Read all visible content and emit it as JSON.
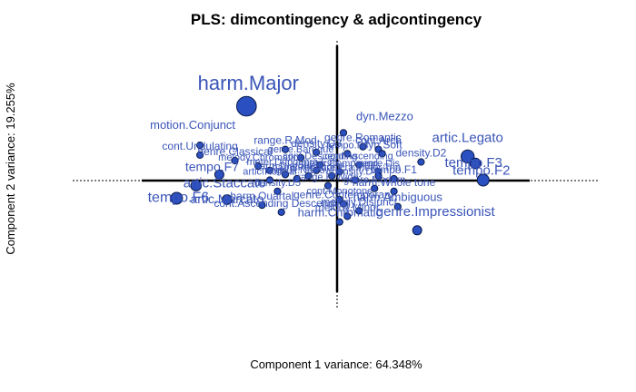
{
  "chart_data": {
    "type": "scatter",
    "title": "PLS: dimcontingency & adjcontingency",
    "xlabel": "Component 1 variance: 64.348%",
    "ylabel": "Component 2 variance: 19.255%",
    "xlim": [
      -1.0,
      1.0
    ],
    "ylim": [
      -1.0,
      1.0
    ],
    "grid": false,
    "point_color": "#2a4fc0",
    "label_color": "#3a55b8",
    "points": [
      {
        "label": "harm.Major",
        "x": -0.46,
        "y": 0.53,
        "weight": 3.0
      },
      {
        "label": "dyn.Mezzo",
        "x": 0.04,
        "y": 0.34,
        "weight": 1
      },
      {
        "label": "genre.Romantic",
        "x": 0.14,
        "y": 0.24,
        "weight": 1
      },
      {
        "label": "cont.Arch",
        "x": 0.22,
        "y": 0.22,
        "weight": 1
      },
      {
        "label": "motion.Conjunct",
        "x": -0.7,
        "y": 0.25,
        "weight": 1
      },
      {
        "label": "range.R.Mod",
        "x": -0.26,
        "y": 0.22,
        "weight": 1
      },
      {
        "label": "density.D3",
        "x": -0.1,
        "y": 0.2,
        "weight": 1
      },
      {
        "label": "tempo.F4",
        "x": 0.06,
        "y": 0.19,
        "weight": 1
      },
      {
        "label": "dyn.Soft",
        "x": 0.24,
        "y": 0.19,
        "weight": 1
      },
      {
        "label": "artic.Legato",
        "x": 0.68,
        "y": 0.17,
        "weight": 2.0
      },
      {
        "label": "tempo.F3",
        "x": 0.72,
        "y": 0.12,
        "weight": 1.6
      },
      {
        "label": "cont.Undulating",
        "x": -0.7,
        "y": 0.18,
        "weight": 1
      },
      {
        "label": "genre.Classical",
        "x": -0.52,
        "y": 0.14,
        "weight": 1
      },
      {
        "label": "genre.Baroque",
        "x": -0.18,
        "y": 0.16,
        "weight": 1
      },
      {
        "label": "density.D2",
        "x": 0.44,
        "y": 0.13,
        "weight": 1
      },
      {
        "label": "melody.Chromatic",
        "x": -0.4,
        "y": 0.1,
        "weight": 1
      },
      {
        "label": "cont.Descending",
        "x": -0.08,
        "y": 0.11,
        "weight": 1
      },
      {
        "label": "cont.Ascending",
        "x": 0.12,
        "y": 0.11,
        "weight": 1
      },
      {
        "label": "meter.Dup",
        "x": -0.34,
        "y": 0.07,
        "weight": 1
      },
      {
        "label": "genre.Folk",
        "x": -0.1,
        "y": 0.07,
        "weight": 1
      },
      {
        "label": "meter.Compound",
        "x": 0.02,
        "y": 0.06,
        "weight": 1
      },
      {
        "label": "genre.Dis",
        "x": 0.22,
        "y": 0.06,
        "weight": 1
      },
      {
        "label": "harm.Diatonic",
        "x": -0.26,
        "y": 0.04,
        "weight": 1
      },
      {
        "label": "harm.Pentatonic",
        "x": -0.14,
        "y": 0.03,
        "weight": 1
      },
      {
        "label": "genre.Era",
        "x": -0.02,
        "y": 0.03,
        "weight": 1
      },
      {
        "label": "meter.Trip",
        "x": 0.22,
        "y": 0.03,
        "weight": 1
      },
      {
        "label": "tempo.F7",
        "x": -0.6,
        "y": 0.04,
        "weight": 1.4
      },
      {
        "label": "artic.Normal",
        "x": -0.34,
        "y": 0.0,
        "weight": 1
      },
      {
        "label": "range.R.Narrow",
        "x": -0.2,
        "y": 0.01,
        "weight": 1
      },
      {
        "label": "tempo.F1",
        "x": 0.3,
        "y": 0.01,
        "weight": 1
      },
      {
        "label": "tempo.F2",
        "x": 0.76,
        "y": 0.0,
        "weight": 1.8
      },
      {
        "label": "density.D4",
        "x": 0.1,
        "y": 0.0,
        "weight": 1
      },
      {
        "label": "range.R.Wide",
        "x": -0.04,
        "y": -0.04,
        "weight": 1
      },
      {
        "label": "genre.Modern",
        "x": 0.2,
        "y": -0.06,
        "weight": 1
      },
      {
        "label": "harm.Whole tone",
        "x": 0.3,
        "y": -0.08,
        "weight": 1
      },
      {
        "label": "artic.Staccato",
        "x": -0.72,
        "y": -0.04,
        "weight": 1.6
      },
      {
        "label": "tempo.F6",
        "x": -0.82,
        "y": -0.13,
        "weight": 1.8
      },
      {
        "label": "artic.Marcato",
        "x": -0.56,
        "y": -0.14,
        "weight": 1.5
      },
      {
        "label": "density.D5",
        "x": -0.3,
        "y": -0.08,
        "weight": 1
      },
      {
        "label": "cont.Monotone",
        "x": 0.02,
        "y": -0.14,
        "weight": 1
      },
      {
        "label": "harm.Quartal",
        "x": -0.38,
        "y": -0.18,
        "weight": 1
      },
      {
        "label": "genre.Contemporary",
        "x": 0.04,
        "y": -0.17,
        "weight": 1
      },
      {
        "label": "harm.Ambiguous",
        "x": 0.32,
        "y": -0.19,
        "weight": 1
      },
      {
        "label": "cont.Ascending Descending",
        "x": -0.28,
        "y": -0.23,
        "weight": 1
      },
      {
        "label": "melody.Disjunct",
        "x": 0.12,
        "y": -0.22,
        "weight": 1
      },
      {
        "label": "melody.Minor",
        "x": 0.06,
        "y": -0.26,
        "weight": 1
      },
      {
        "label": "harm.Chromatic",
        "x": 0.02,
        "y": -0.3,
        "weight": 1
      },
      {
        "label": "genre.Impressionist",
        "x": 0.42,
        "y": -0.36,
        "weight": 1.4
      }
    ],
    "visible_labels": [
      {
        "text": "harm.Major",
        "size": 22
      },
      {
        "text": "dyn.Mezzo",
        "size": 13
      },
      {
        "text": "genre.Romantic",
        "size": 12
      },
      {
        "text": "cont.Arch",
        "size": 12
      },
      {
        "text": "motion.Conjunct",
        "size": 13
      },
      {
        "text": "range.R.Mod",
        "size": 12
      },
      {
        "text": "density.D3",
        "size": 12
      },
      {
        "text": "tempo.F4",
        "size": 11
      },
      {
        "text": "dyn.Soft",
        "size": 12
      },
      {
        "text": "artic.Legato",
        "size": 15
      },
      {
        "text": "tempo.F3",
        "size": 15
      },
      {
        "text": "cont.Undulating",
        "size": 12
      },
      {
        "text": "genre.Classical",
        "size": 12
      },
      {
        "text": "genre.Baroque",
        "size": 11
      },
      {
        "text": "density.D2",
        "size": 12
      },
      {
        "text": "melody.Chromatic",
        "size": 11
      },
      {
        "text": "cont.Descending",
        "size": 11
      },
      {
        "text": "cont.Ascending",
        "size": 11
      },
      {
        "text": "meter.Dup",
        "size": 11
      },
      {
        "text": "genre.Folk",
        "size": 11
      },
      {
        "text": "meter.Compound",
        "size": 11
      },
      {
        "text": "genre.Dis",
        "size": 11
      },
      {
        "text": "harm.Diatonic",
        "size": 11
      },
      {
        "text": "harm.Pentatonic",
        "size": 11
      },
      {
        "text": "genre.Era",
        "size": 11
      },
      {
        "text": "meter.Trip",
        "size": 11
      },
      {
        "text": "tempo.F7",
        "size": 14
      },
      {
        "text": "artic.Normal",
        "size": 11
      },
      {
        "text": "range.R.Narrow",
        "size": 11
      },
      {
        "text": "tempo.F1",
        "size": 12
      },
      {
        "text": "tempo.F2",
        "size": 15
      },
      {
        "text": "density.D4",
        "size": 11
      },
      {
        "text": "range.R.Wide",
        "size": 11
      },
      {
        "text": "genre.Modern",
        "size": 11
      },
      {
        "text": "harm.Whole tone",
        "size": 12
      },
      {
        "text": "artic.Staccato",
        "size": 15
      },
      {
        "text": "tempo.F6",
        "size": 16
      },
      {
        "text": "artic.Marcato",
        "size": 14
      },
      {
        "text": "density.D5",
        "size": 11
      },
      {
        "text": "cont.Monotone",
        "size": 11
      },
      {
        "text": "harm.Quartal",
        "size": 12
      },
      {
        "text": "genre.Contemporary",
        "size": 12
      },
      {
        "text": "harm.Ambiguous",
        "size": 13
      },
      {
        "text": "cont.Ascending Descending",
        "size": 12
      },
      {
        "text": "melody.Disjunct",
        "size": 12
      },
      {
        "text": "melody.Minor",
        "size": 12
      },
      {
        "text": "harm.Chromatic",
        "size": 13
      },
      {
        "text": "genre.Impressionist",
        "size": 15
      }
    ]
  }
}
